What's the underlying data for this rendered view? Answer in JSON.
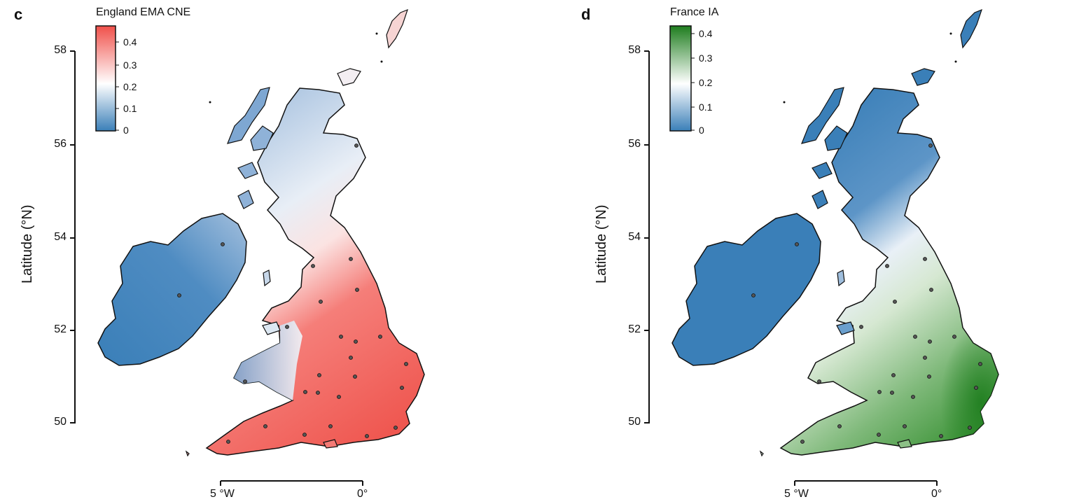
{
  "panels": [
    {
      "letter": "c",
      "legend_title": "England EMA CNE",
      "legend_ticks": [
        "0.4",
        "0.3",
        "0.2",
        "0.1",
        "0"
      ],
      "legend_colors": {
        "low": "#3a7fb8",
        "mid": "#ffffff",
        "high": "#f0504a"
      }
    },
    {
      "letter": "d",
      "legend_title": "France IA",
      "legend_ticks": [
        "0.4",
        "0.3",
        "0.2",
        "0.1",
        "0"
      ],
      "legend_colors": {
        "low": "#3a7fb8",
        "mid": "#ffffff",
        "high": "#1e7d1e"
      }
    }
  ],
  "axes": {
    "ylabel": "Latitude (°N)",
    "yticks": [
      "58",
      "56",
      "54",
      "52",
      "50"
    ],
    "xticks": [
      "5 °W",
      "0°"
    ]
  },
  "colors": {
    "land_outline": "#111111",
    "point_fill": "#555555"
  }
}
